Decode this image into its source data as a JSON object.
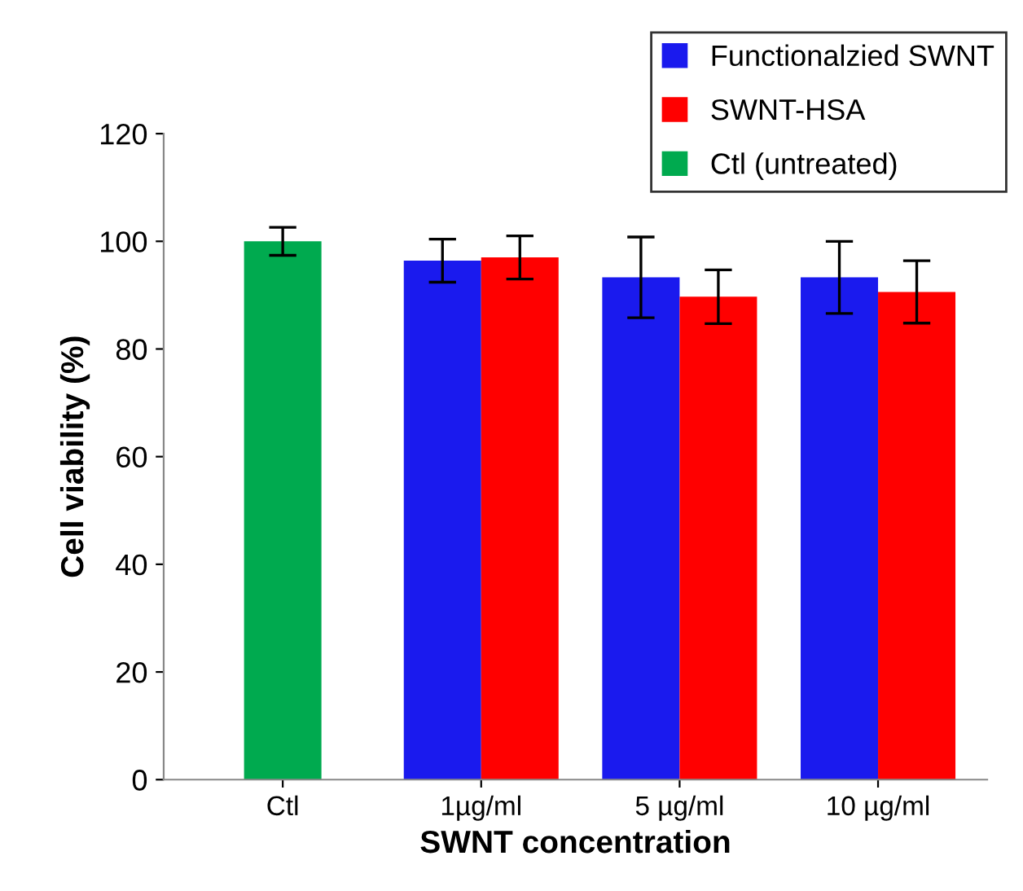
{
  "chart_data": {
    "type": "bar",
    "xlabel": "SWNT concentration",
    "ylabel": "Cell viability (%)",
    "categories": [
      "Ctl",
      "1µg/ml",
      "5 µg/ml",
      "10 µg/ml"
    ],
    "series": [
      {
        "name": "Functionalzied SWNT",
        "color": "#1a1aee",
        "values": [
          null,
          96.4,
          93.3,
          93.3
        ],
        "errors": [
          null,
          4,
          7.5,
          6.7
        ]
      },
      {
        "name": "SWNT-HSA",
        "color": "#ff0000",
        "values": [
          null,
          97,
          89.7,
          90.6
        ],
        "errors": [
          null,
          4,
          5,
          5.8
        ]
      },
      {
        "name": "Ctl (untreated)",
        "color": "#00aa4f",
        "values": [
          100,
          null,
          null,
          null
        ],
        "errors": [
          2.6,
          null,
          null,
          null
        ]
      }
    ],
    "ylim": [
      0,
      120
    ],
    "yticks": [
      0,
      20,
      40,
      60,
      80,
      100,
      120
    ],
    "grid": false,
    "legend": "top right"
  }
}
